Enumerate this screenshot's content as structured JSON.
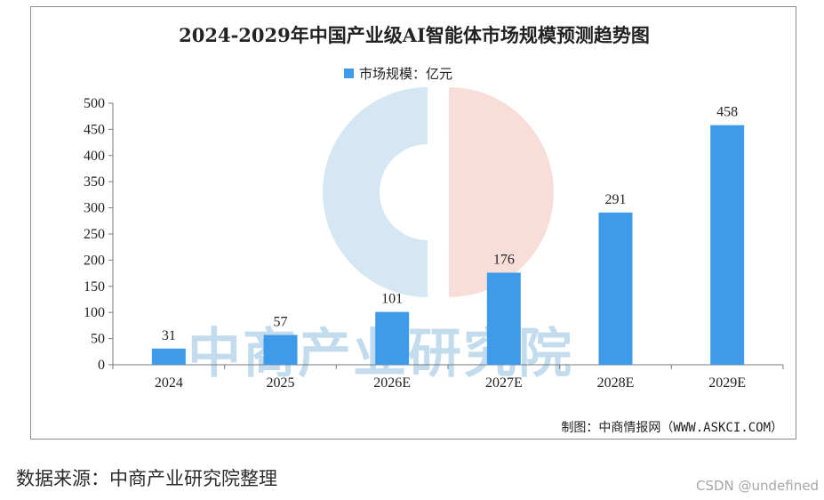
{
  "chart_data": {
    "type": "bar",
    "title": "2024-2029年中国产业级AI智能体市场规模预测趋势图",
    "legend": "市场规模：亿元",
    "legend_position": "top-center",
    "categories": [
      "2024",
      "2025",
      "2026E",
      "2027E",
      "2028E",
      "2029E"
    ],
    "values": [
      31,
      57,
      101,
      176,
      291,
      458
    ],
    "labels": [
      "31",
      "57",
      "101",
      "176",
      "291",
      "458"
    ],
    "ylim": [
      0,
      500
    ],
    "yticks": [
      0,
      50,
      100,
      150,
      200,
      250,
      300,
      350,
      400,
      450,
      500
    ],
    "xlabel": "",
    "ylabel": "",
    "grid": false,
    "bar_color": "#3e9be9",
    "credit": "制图：中商情报网（WWW.ASKCI.COM）",
    "watermark": "中商产业研究院"
  },
  "footer": {
    "source": "数据来源：中商产业研究院整理",
    "platform_credit": "CSDN @undefined"
  }
}
